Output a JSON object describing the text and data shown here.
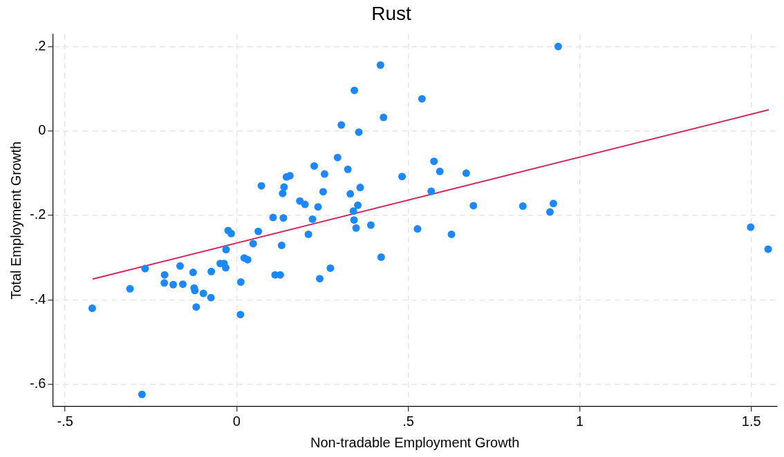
{
  "chart_data": {
    "type": "scatter",
    "title": "Rust",
    "xlabel": "Non-tradable Employment Growth",
    "ylabel": "Total Employment Growth",
    "xlim": [
      -0.536,
      1.575
    ],
    "ylim": [
      -0.653,
      0.229
    ],
    "xticks": [
      {
        "value": -0.5,
        "label": "-.5"
      },
      0,
      {
        "value": 0.5,
        "label": ".5"
      },
      1,
      1.5
    ],
    "yticks": [
      {
        "value": -0.6,
        "label": "-.6"
      },
      {
        "value": -0.4,
        "label": "-.4"
      },
      {
        "value": -0.2,
        "label": "-.2"
      },
      0,
      {
        "value": 0.2,
        "label": ".2"
      }
    ],
    "grid": true,
    "legend": false,
    "marker": "circle",
    "series": [
      {
        "color": "#1e88fb",
        "x": [
          -0.421,
          -0.311,
          -0.276,
          -0.267,
          -0.21,
          -0.211,
          -0.185,
          -0.165,
          -0.157,
          -0.127,
          -0.124,
          -0.122,
          -0.118,
          -0.097,
          -0.074,
          -0.075,
          -0.048,
          -0.037,
          -0.032,
          -0.031,
          -0.025,
          -0.016,
          0.012,
          0.011,
          0.022,
          0.032,
          0.048,
          0.063,
          0.294,
          0.226,
          0.324,
          0.256,
          0.145,
          0.155,
          0.482,
          0.072,
          0.138,
          0.134,
          0.252,
          0.331,
          0.36,
          0.184,
          0.199,
          0.237,
          0.353,
          0.34,
          0.106,
          0.136,
          0.221,
          0.342,
          0.348,
          0.391,
          0.209,
          0.131,
          0.421,
          0.273,
          0.112,
          0.127,
          0.242,
          0.527,
          0.419,
          0.343,
          0.428,
          0.305,
          0.356,
          0.937,
          0.54,
          0.575,
          0.592,
          0.669,
          0.567,
          0.69,
          0.834,
          0.923,
          0.913,
          0.626,
          1.498,
          1.549
        ],
        "values": [
          -0.42,
          -0.374,
          -0.624,
          -0.326,
          -0.341,
          -0.36,
          -0.364,
          -0.32,
          -0.363,
          -0.335,
          -0.372,
          -0.378,
          -0.417,
          -0.385,
          -0.333,
          -0.395,
          -0.314,
          -0.314,
          -0.324,
          -0.281,
          -0.236,
          -0.243,
          -0.358,
          -0.435,
          -0.301,
          -0.305,
          -0.267,
          -0.238,
          -0.063,
          -0.083,
          -0.091,
          -0.102,
          -0.109,
          -0.106,
          -0.108,
          -0.13,
          -0.133,
          -0.148,
          -0.144,
          -0.149,
          -0.134,
          -0.166,
          -0.174,
          -0.18,
          -0.176,
          -0.19,
          -0.205,
          -0.206,
          -0.209,
          -0.211,
          -0.23,
          -0.223,
          -0.245,
          -0.271,
          -0.299,
          -0.325,
          -0.341,
          -0.341,
          -0.35,
          -0.232,
          0.156,
          0.096,
          0.032,
          0.014,
          -0.003,
          0.2,
          0.076,
          -0.072,
          -0.096,
          -0.1,
          -0.143,
          -0.177,
          -0.178,
          -0.172,
          -0.192,
          -0.245,
          -0.228,
          -0.28
        ]
      },
      {
        "type": "line",
        "color": "#d6245c",
        "marker": "none",
        "line_style": "solid",
        "x": [
          -0.42,
          1.551
        ],
        "values": [
          -0.351,
          0.05
        ]
      }
    ]
  }
}
